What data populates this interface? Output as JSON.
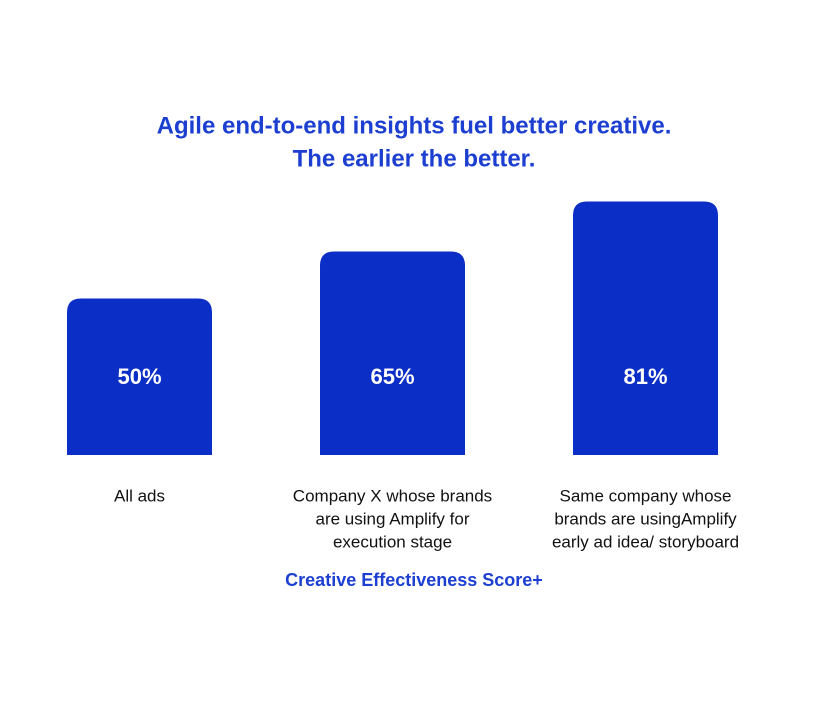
{
  "chart_data": {
    "type": "bar",
    "title": [
      "Agile end-to-end insights fuel better creative.",
      "The earlier the better."
    ],
    "categories": [
      [
        "All ads"
      ],
      [
        "Company X whose brands",
        "are using Amplify for",
        "execution stage"
      ],
      [
        "Same company whose",
        "brands are usingAmplify",
        "early ad idea/ storyboard"
      ]
    ],
    "values": [
      50,
      65,
      81
    ],
    "value_labels": [
      "50%",
      "65%",
      "81%"
    ],
    "x_label": "Creative Effectiveness Score+",
    "color": "#0a2ec6"
  }
}
